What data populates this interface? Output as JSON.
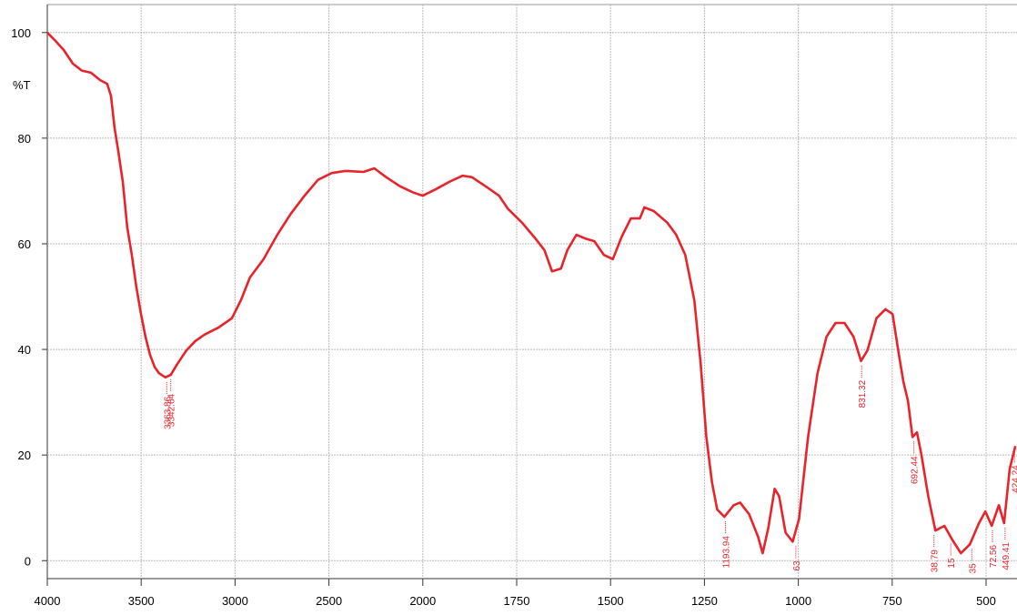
{
  "chart_data": {
    "type": "line",
    "ylabel": "%T",
    "color": "#e8232a",
    "grid": true,
    "xlim": [
      4000,
      418
    ],
    "xticks": [
      4000,
      3500,
      3000,
      2500,
      2000,
      1750,
      1500,
      1250,
      1000,
      750,
      500
    ],
    "ylim": [
      -3.4,
      105.3
    ],
    "yticks": [
      0,
      20,
      40,
      60,
      80,
      100
    ],
    "x": [
      4000,
      3961,
      3913,
      3864,
      3816,
      3768,
      3719,
      3681,
      3661,
      3642,
      3623,
      3598,
      3574,
      3550,
      3526,
      3501,
      3477,
      3453,
      3429,
      3405,
      3371,
      3342,
      3308,
      3259,
      3211,
      3163,
      3090,
      3017,
      2969,
      2921,
      2848,
      2775,
      2703,
      2630,
      2558,
      2485,
      2412,
      2316,
      2258,
      2195,
      2122,
      2050,
      2000,
      1966,
      1930,
      1894,
      1869,
      1833,
      1797,
      1773,
      1736,
      1700,
      1676,
      1656,
      1632,
      1615,
      1591,
      1567,
      1543,
      1518,
      1494,
      1470,
      1446,
      1422,
      1410,
      1385,
      1349,
      1325,
      1301,
      1277,
      1260,
      1245,
      1230,
      1216,
      1197,
      1172,
      1155,
      1131,
      1107,
      1095,
      1080,
      1063,
      1051,
      1034,
      1015,
      998,
      974,
      949,
      925,
      901,
      877,
      853,
      833,
      816,
      792,
      768,
      749,
      732,
      720,
      708,
      696,
      684,
      672,
      654,
      635,
      611,
      591,
      567,
      543,
      519,
      502,
      485,
      466,
      452,
      437,
      422
    ],
    "values": [
      100,
      98.6,
      96.7,
      94.1,
      92.8,
      92.4,
      91,
      90.3,
      88,
      82,
      77.8,
      71.7,
      63.1,
      57.9,
      51.9,
      46.7,
      42.4,
      39,
      36.7,
      35.5,
      34.7,
      35.2,
      37.2,
      39.8,
      41.6,
      42.8,
      44.1,
      45.9,
      49.3,
      53.6,
      57.1,
      61.7,
      65.7,
      69.1,
      72.1,
      73.4,
      73.8,
      73.6,
      74.3,
      72.6,
      70.9,
      69.7,
      69.1,
      70.3,
      71.7,
      72.9,
      72.6,
      70.9,
      69.1,
      66.6,
      64,
      61,
      58.8,
      54.8,
      55.3,
      58.8,
      61.7,
      61,
      60.5,
      57.9,
      57.1,
      61.4,
      64.8,
      64.8,
      66.9,
      66.2,
      64,
      61.7,
      57.9,
      49.3,
      37.2,
      23.4,
      14.8,
      9.7,
      8.3,
      10.5,
      11,
      8.8,
      4.5,
      1.4,
      6.2,
      13.6,
      12.2,
      5.3,
      3.6,
      7.9,
      23.4,
      35.5,
      42.4,
      45,
      45,
      42.4,
      37.8,
      39.8,
      45.9,
      47.6,
      46.7,
      39,
      33.8,
      30.3,
      23.4,
      24.3,
      20,
      12.2,
      5.7,
      6.6,
      4.1,
      1.4,
      3.1,
      7.1,
      9.3,
      6.6,
      10.5,
      7.1,
      17.4,
      21.7
    ],
    "annotations": [
      {
        "text": "3363.86",
        "x": 3363.86,
        "y": 34.7
      },
      {
        "text": "3342.64",
        "x": 3342.64,
        "y": 35.2
      },
      {
        "text": "1193.94",
        "x": 1193.94,
        "y": 8.3
      },
      {
        "text": "63",
        "x": 1006.63,
        "y": 3.6
      },
      {
        "text": "831.32",
        "x": 831.32,
        "y": 37.8
      },
      {
        "text": "692.44",
        "x": 692.44,
        "y": 23.4
      },
      {
        "text": "38.79",
        "x": 638.79,
        "y": 5.7
      },
      {
        "text": "15",
        "x": 594,
        "y": 4.1
      },
      {
        "text": "35",
        "x": 538,
        "y": 3.1
      },
      {
        "text": "72.56",
        "x": 483,
        "y": 6.6
      },
      {
        "text": "449.41",
        "x": 449.41,
        "y": 7.1
      },
      {
        "text": "424.24",
        "x": 424.24,
        "y": 21.7
      }
    ]
  }
}
